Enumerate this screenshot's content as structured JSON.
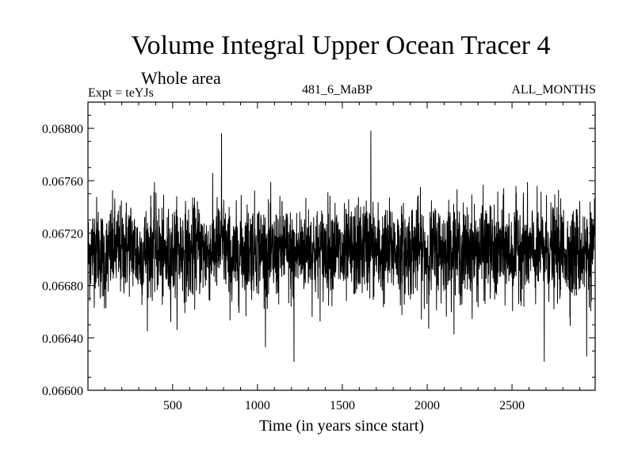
{
  "header": {
    "expt_label": "Expt = teYJs",
    "run_label": "481_6_MaBP",
    "months_label": "ALL_MONTHS"
  },
  "chart_data": {
    "type": "line",
    "title": "Volume Integral Upper Ocean Tracer 4",
    "subtitle": "Whole area",
    "xlabel": "Time (in years since start)",
    "ylabel": "",
    "xlim": [
      1,
      2990
    ],
    "ylim": [
      0.066,
      0.0682
    ],
    "xticks": [
      500,
      1000,
      1500,
      2000,
      2500
    ],
    "xtick_labels": [
      "500",
      "1000",
      "1500",
      "2000",
      "2500"
    ],
    "yticks": [
      0.066,
      0.0664,
      0.0668,
      0.0672,
      0.0676,
      0.068
    ],
    "ytick_labels": [
      "0.06600",
      "0.06640",
      "0.06680",
      "0.06720",
      "0.06760",
      "0.06800"
    ],
    "grid": false,
    "line_color": "#000000",
    "series": [
      {
        "x": [
          1,
          50,
          100,
          150,
          200,
          250,
          300,
          350,
          400,
          450,
          500,
          550,
          600,
          650,
          700,
          750,
          800,
          850,
          900,
          950,
          1000,
          1050,
          1100,
          1150,
          1200,
          1250,
          1300,
          1350,
          1400,
          1450,
          1500,
          1550,
          1600,
          1650,
          1700,
          1750,
          1800,
          1850,
          1900,
          1950,
          2000,
          2050,
          2100,
          2150,
          2200,
          2250,
          2300,
          2350,
          2400,
          2450,
          2500,
          2550,
          2600,
          2650,
          2700,
          2750,
          2800,
          2850,
          2900,
          2950,
          2990
        ],
        "values": [
          0.06703,
          0.06712,
          0.06698,
          0.06709,
          0.06706,
          0.06713,
          0.06702,
          0.06707,
          0.06711,
          0.06699,
          0.06705,
          0.06708,
          0.06703,
          0.0671,
          0.06704,
          0.06709,
          0.06712,
          0.06697,
          0.06706,
          0.06708,
          0.06711,
          0.06704,
          0.06702,
          0.06709,
          0.06701,
          0.06706,
          0.0671,
          0.06703,
          0.06707,
          0.06712,
          0.067,
          0.06705,
          0.06708,
          0.06711,
          0.06706,
          0.06703,
          0.06709,
          0.06704,
          0.06707,
          0.0671,
          0.06702,
          0.06708,
          0.06705,
          0.06711,
          0.06703,
          0.06707,
          0.06706,
          0.06709,
          0.06701,
          0.06708,
          0.06704,
          0.06712,
          0.06706,
          0.06703,
          0.06709,
          0.06705,
          0.06708,
          0.06702,
          0.06707,
          0.06704,
          0.06709
        ],
        "annual_range": [
          0.0665,
          0.0676
        ],
        "extremes": [
          {
            "x": 788,
            "y": 0.06796
          },
          {
            "x": 1668,
            "y": 0.06798
          },
          {
            "x": 1215,
            "y": 0.06622
          },
          {
            "x": 2690,
            "y": 0.06622
          },
          {
            "x": 2940,
            "y": 0.06626
          }
        ]
      }
    ]
  }
}
